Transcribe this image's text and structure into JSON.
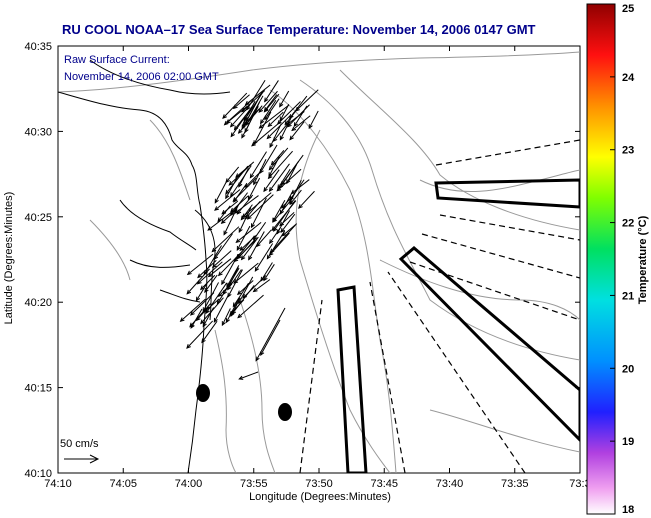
{
  "title": "RU COOL  NOAA–17  Sea Surface Temperature:  November 14, 2006 0147 GMT",
  "annotation": {
    "line1": "Raw Surface Current:",
    "line2": "November 14, 2006 02:00 GMT"
  },
  "scale_label": "50 cm/s",
  "axes": {
    "xlabel": "Longitude (Degrees:Minutes)",
    "ylabel": "Latitude (Degrees:Minutes)",
    "x_ticks": [
      "74:10",
      "74:05",
      "74:00",
      "73:55",
      "73:50",
      "73:45",
      "73:40",
      "73:35",
      "73:3"
    ],
    "y_ticks": [
      "40:35",
      "40:30",
      "40:25",
      "40:20",
      "40:15",
      "40:10"
    ]
  },
  "colorbar": {
    "label": "Temperature (°C)",
    "min": 18,
    "max": 25,
    "ticks": [
      "25",
      "24",
      "23",
      "22",
      "21",
      "20",
      "19",
      "18"
    ]
  },
  "colors": {
    "title": "#00008b",
    "annotation": "#00008b",
    "contour": "#999999",
    "coast": "#000000",
    "vectors": "#000000"
  }
}
